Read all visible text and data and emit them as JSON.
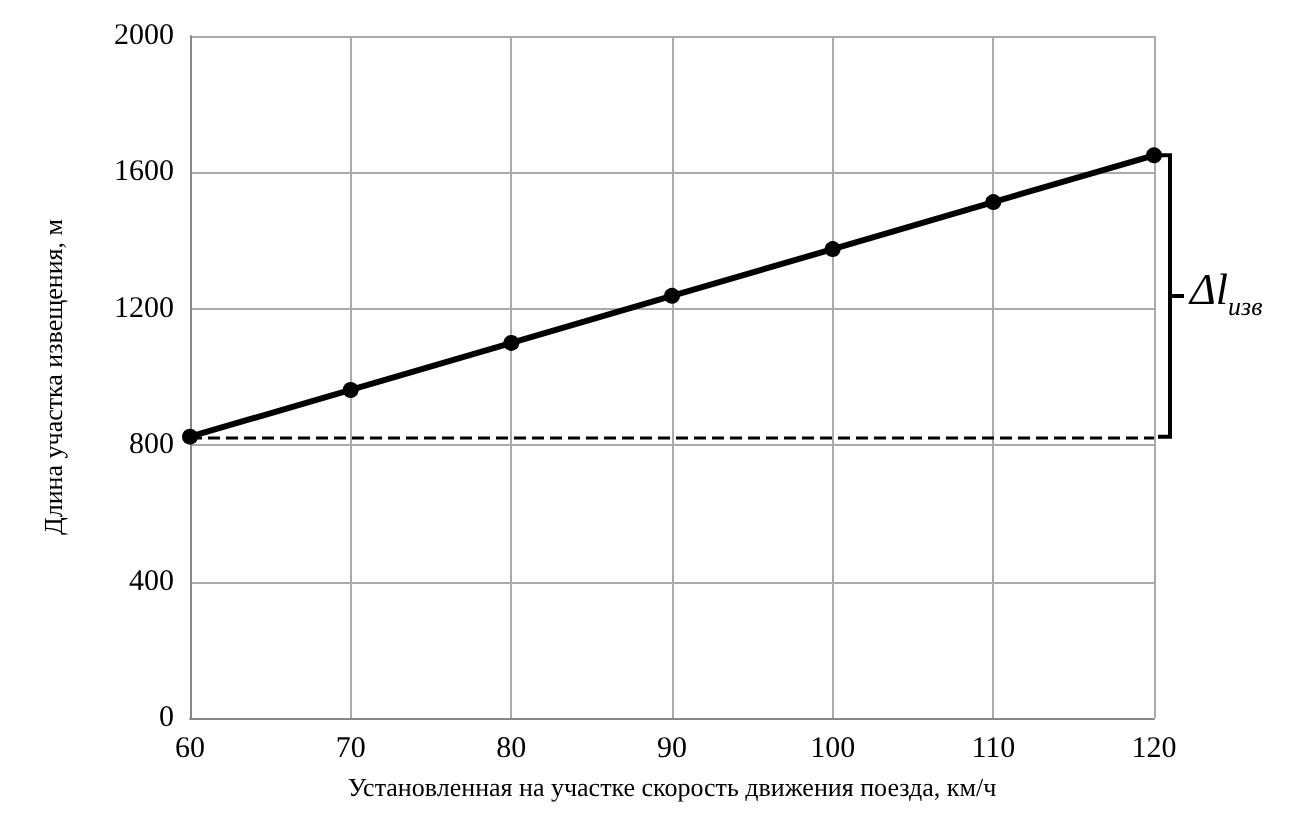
{
  "chart_data": {
    "type": "line",
    "xlabel": "Установленная на участке скорость движения поезда, км/ч",
    "ylabel": "Длина участка извещения, м",
    "x": [
      60,
      70,
      80,
      90,
      100,
      110,
      120
    ],
    "series": [
      {
        "color": "#000000",
        "values": [
          825,
          962,
          1100,
          1238,
          1375,
          1513,
          1650
        ]
      }
    ],
    "xlim": [
      60,
      120
    ],
    "xticks": [
      60,
      70,
      80,
      90,
      100,
      110,
      120
    ],
    "ylim": [
      0,
      2000
    ],
    "yticks": [
      0,
      400,
      800,
      1200,
      1600,
      2000
    ],
    "grid": true,
    "marker": "circle",
    "line_style": "solid",
    "ref_lines": [
      {
        "axis": "y",
        "value": 825,
        "color": "#000000",
        "line_style": "dashed"
      }
    ],
    "annotations": [
      "Δl$_{изв}$"
    ]
  }
}
